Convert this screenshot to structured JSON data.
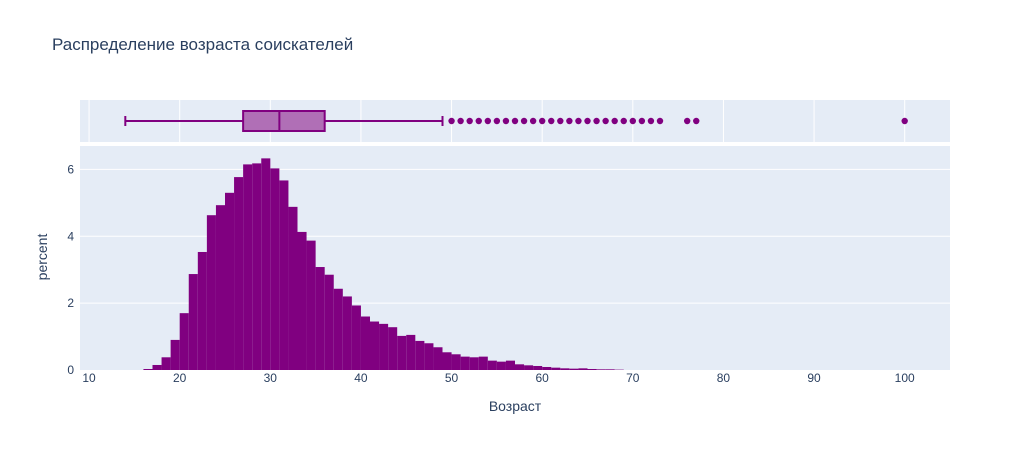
{
  "chart_data": {
    "type": "histogram_with_box",
    "title": "Распределение возраста соискателей",
    "xlabel": "Возраст",
    "ylabel": "percent",
    "xlim": [
      9,
      105
    ],
    "ylim": [
      0,
      6.7
    ],
    "x_ticks": [
      10,
      20,
      30,
      40,
      50,
      60,
      70,
      80,
      90,
      100
    ],
    "y_ticks": [
      0,
      2,
      4,
      6
    ],
    "grid": true,
    "colors": {
      "bar": "#800080",
      "box_fill": "#b06fb6",
      "box_line": "#800080",
      "plot_bg": "#e5ecf6",
      "text": "#2a3f5f"
    },
    "histogram": {
      "bin_width": 1,
      "bins_start": [
        16,
        17,
        18,
        19,
        20,
        21,
        22,
        23,
        24,
        25,
        26,
        27,
        28,
        29,
        30,
        31,
        32,
        33,
        34,
        35,
        36,
        37,
        38,
        39,
        40,
        41,
        42,
        43,
        44,
        45,
        46,
        47,
        48,
        49,
        50,
        51,
        52,
        53,
        54,
        55,
        56,
        57,
        58,
        59,
        60,
        61,
        62,
        63,
        64,
        65,
        66,
        67,
        68
      ],
      "values": [
        0.03,
        0.15,
        0.38,
        0.9,
        1.7,
        2.87,
        3.53,
        4.63,
        4.93,
        5.3,
        5.77,
        6.15,
        6.18,
        6.33,
        6.03,
        5.67,
        4.88,
        4.13,
        3.87,
        3.08,
        2.85,
        2.43,
        2.2,
        1.93,
        1.6,
        1.45,
        1.38,
        1.28,
        1.02,
        1.05,
        0.87,
        0.8,
        0.68,
        0.53,
        0.47,
        0.4,
        0.38,
        0.4,
        0.28,
        0.25,
        0.28,
        0.17,
        0.14,
        0.12,
        0.09,
        0.07,
        0.05,
        0.04,
        0.05,
        0.03,
        0.02,
        0.02,
        0.01
      ]
    },
    "box": {
      "lower_fence": 14,
      "q1": 27,
      "median": 31,
      "q3": 36,
      "upper_fence": 49,
      "outliers": [
        50,
        51,
        52,
        53,
        54,
        55,
        56,
        57,
        58,
        59,
        60,
        61,
        62,
        63,
        64,
        65,
        66,
        67,
        68,
        69,
        70,
        71,
        72,
        73,
        76,
        77,
        100
      ]
    }
  }
}
